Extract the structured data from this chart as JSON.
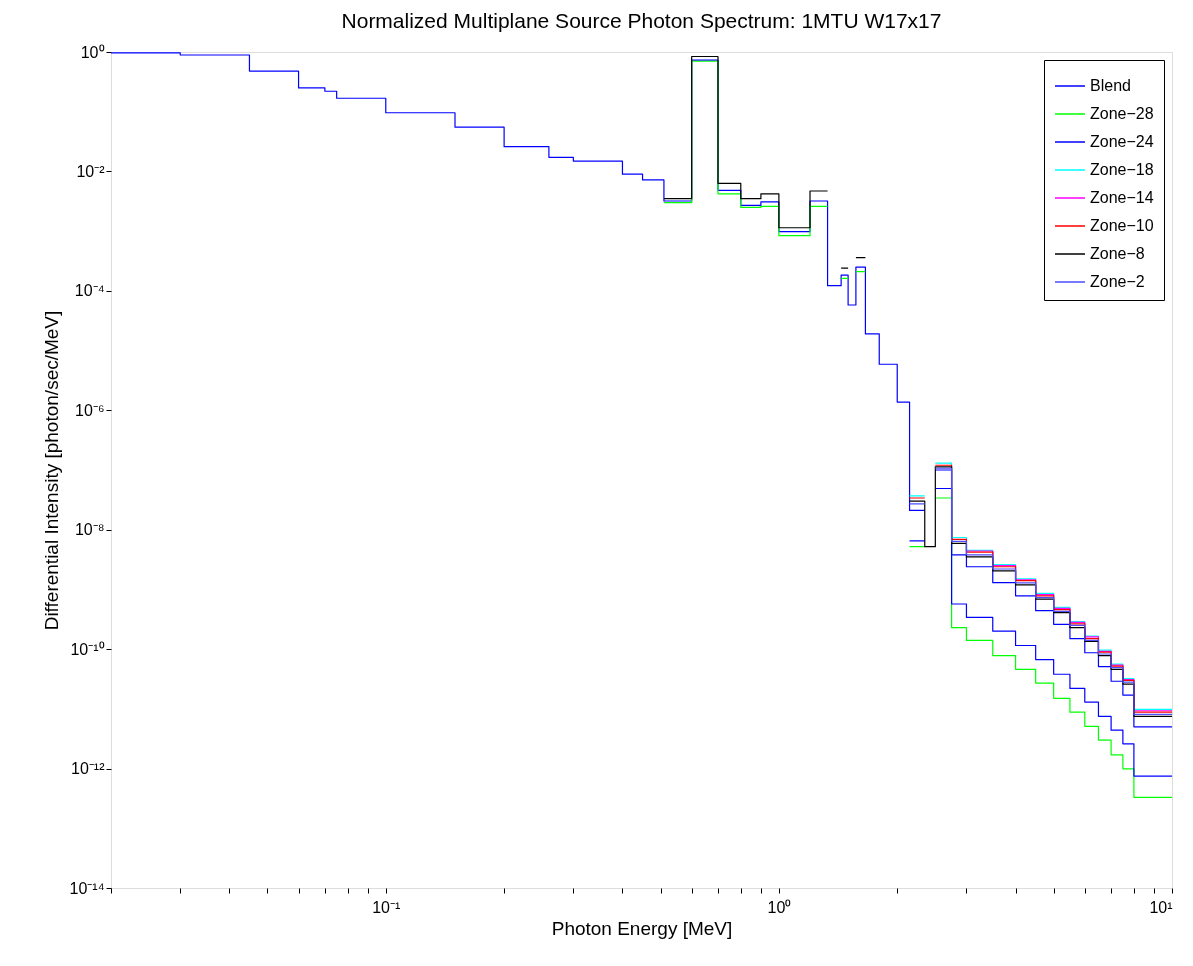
{
  "chart_data": {
    "type": "step",
    "title": "Normalized Multiplane Source Photon Spectrum: 1MTU W17x17",
    "xlabel": "Photon Energy [MeV]",
    "ylabel": "Differential Intensity [photon/sec/MeV]",
    "log": "xy",
    "grid": false,
    "legend": "top right",
    "line_style": "solid",
    "marker": "none",
    "xlim": [
      0.02,
      10
    ],
    "ylim": [
      1e-14,
      1
    ],
    "xticks": [
      {
        "value": 0.02,
        "label": null
      },
      {
        "value": 0.03,
        "label": null
      },
      {
        "value": 0.04,
        "label": null
      },
      {
        "value": 0.05,
        "label": null
      },
      {
        "value": 0.06,
        "label": null
      },
      {
        "value": 0.07,
        "label": null
      },
      {
        "value": 0.08,
        "label": null
      },
      {
        "value": 0.09,
        "label": null
      },
      {
        "value": 0.1,
        "label": "10⁻¹"
      },
      {
        "value": 0.2,
        "label": null
      },
      {
        "value": 0.3,
        "label": null
      },
      {
        "value": 0.4,
        "label": null
      },
      {
        "value": 0.5,
        "label": null
      },
      {
        "value": 0.6,
        "label": null
      },
      {
        "value": 0.7,
        "label": null
      },
      {
        "value": 0.8,
        "label": null
      },
      {
        "value": 0.9,
        "label": null
      },
      {
        "value": 1,
        "label": "10⁰"
      },
      {
        "value": 2,
        "label": null
      },
      {
        "value": 3,
        "label": null
      },
      {
        "value": 4,
        "label": null
      },
      {
        "value": 5,
        "label": null
      },
      {
        "value": 6,
        "label": null
      },
      {
        "value": 7,
        "label": null
      },
      {
        "value": 8,
        "label": null
      },
      {
        "value": 9,
        "label": null
      },
      {
        "value": 10,
        "label": "10¹"
      }
    ],
    "yticks": [
      {
        "value": 1e-14,
        "label": "10⁻¹⁴"
      },
      {
        "value": 1e-12,
        "label": "10⁻¹²"
      },
      {
        "value": 1e-10,
        "label": "10⁻¹⁰"
      },
      {
        "value": 1e-08,
        "label": "10⁻⁸"
      },
      {
        "value": 1e-06,
        "label": "10⁻⁶"
      },
      {
        "value": 0.0001,
        "label": "10⁻⁴"
      },
      {
        "value": 0.01,
        "label": "10⁻²"
      },
      {
        "value": 1,
        "label": "10⁰"
      }
    ],
    "x": [
      0.02,
      0.03,
      0.045,
      0.06,
      0.07,
      0.075,
      0.1,
      0.15,
      0.2,
      0.26,
      0.3,
      0.4,
      0.45,
      0.51,
      0.6,
      0.7,
      0.8,
      0.9,
      1.0,
      1.2,
      1.33,
      1.44,
      1.5,
      1.57,
      1.66,
      1.8,
      2.0,
      2.15,
      2.35,
      2.5,
      2.75,
      3.0,
      3.5,
      4.0,
      4.5,
      5.0,
      5.5,
      6.0,
      6.5,
      7.0,
      7.5,
      8.0,
      10
    ],
    "series": [
      {
        "name": "Blend",
        "color": "#0000ff",
        "values": [
          0.97,
          0.89,
          0.48,
          0.25,
          0.22,
          0.168,
          0.096,
          0.055,
          0.026,
          0.0172,
          0.0149,
          0.009,
          0.0072,
          0.0032,
          0.73,
          0.0048,
          0.0027,
          0.0031,
          0.00098,
          0.0032,
          0.000122,
          0.000184,
          5.8e-05,
          0.00025,
          1.9e-05,
          5.9e-06,
          1.37e-06,
          2.1e-08,
          null,
          1e-07,
          3.8e-09,
          2.4e-09,
          1.3e-09,
          7.8e-10,
          4.4e-10,
          2.6e-10,
          1.5e-10,
          8.7e-11,
          5.1e-11,
          2.9e-11,
          1.7e-11,
          5e-12,
          5e-12
        ]
      },
      {
        "name": "Zone−28",
        "color": "#00ff00",
        "values": [
          null,
          null,
          null,
          null,
          null,
          null,
          null,
          null,
          null,
          null,
          null,
          null,
          null,
          0.003,
          0.7,
          0.0042,
          0.0025,
          0.0026,
          0.00084,
          0.0026,
          null,
          0.000162,
          null,
          0.00021,
          null,
          null,
          null,
          5.2e-09,
          null,
          3.4e-08,
          2.3e-10,
          1.4e-10,
          7.8e-11,
          4.6e-11,
          2.7e-11,
          1.5e-11,
          8.8e-12,
          5.1e-12,
          3e-12,
          1.7e-12,
          9.9e-13,
          3.3e-13,
          3.3e-13
        ]
      },
      {
        "name": "Zone−24",
        "color": "#0000ff",
        "values": [
          null,
          null,
          null,
          null,
          null,
          null,
          null,
          null,
          null,
          null,
          null,
          null,
          null,
          null,
          null,
          null,
          null,
          null,
          null,
          null,
          null,
          null,
          null,
          null,
          null,
          null,
          null,
          6.5e-09,
          null,
          4.9e-08,
          5.7e-10,
          3.4e-10,
          2e-10,
          1.15e-10,
          6.7e-11,
          3.8e-11,
          2.2e-11,
          1.3e-11,
          7.5e-12,
          4.4e-12,
          2.6e-12,
          7.5e-13,
          7.5e-13
        ]
      },
      {
        "name": "Zone−18",
        "color": "#00ffff",
        "values": [
          null,
          null,
          null,
          null,
          null,
          null,
          null,
          null,
          null,
          null,
          null,
          null,
          null,
          null,
          null,
          null,
          null,
          null,
          null,
          null,
          null,
          null,
          null,
          null,
          null,
          null,
          null,
          3.7e-08,
          null,
          1.3e-07,
          7.4e-09,
          4.5e-09,
          2.6e-09,
          1.5e-09,
          8.6e-10,
          5e-10,
          2.9e-10,
          1.65e-10,
          9.6e-11,
          5.6e-11,
          3.2e-11,
          9.8e-12,
          9.8e-12
        ]
      },
      {
        "name": "Zone−14",
        "color": "#ff00ff",
        "values": [
          null,
          null,
          null,
          null,
          null,
          null,
          null,
          null,
          null,
          null,
          null,
          null,
          null,
          null,
          null,
          null,
          null,
          null,
          null,
          null,
          null,
          null,
          null,
          null,
          null,
          null,
          null,
          null,
          null,
          null,
          null,
          4.4e-09,
          2.5e-09,
          1.45e-09,
          8.2e-10,
          4.8e-10,
          2.8e-10,
          1.6e-10,
          9.2e-11,
          5.4e-11,
          3.1e-11,
          9.3e-12,
          9.3e-12
        ]
      },
      {
        "name": "Zone−10",
        "color": "#ff0000",
        "values": [
          null,
          null,
          null,
          null,
          null,
          null,
          null,
          null,
          null,
          null,
          null,
          null,
          null,
          null,
          null,
          null,
          null,
          null,
          null,
          null,
          null,
          null,
          null,
          null,
          null,
          null,
          null,
          3.4e-08,
          null,
          1.2e-07,
          6.9e-09,
          4.2e-09,
          2.4e-09,
          1.4e-09,
          7.8e-10,
          4.6e-10,
          2.65e-10,
          1.5e-10,
          8.9e-11,
          5.2e-11,
          3e-11,
          8.8e-12,
          8.8e-12
        ]
      },
      {
        "name": "Zone−8",
        "color": "#000000",
        "values": [
          null,
          null,
          null,
          null,
          null,
          null,
          null,
          null,
          null,
          null,
          null,
          null,
          null,
          0.0035,
          0.84,
          0.0063,
          0.0035,
          0.0042,
          0.00114,
          0.0047,
          null,
          0.00024,
          null,
          0.00036,
          null,
          null,
          null,
          3e-08,
          5.2e-09,
          1.13e-07,
          5.9e-09,
          3.5e-09,
          2.05e-09,
          1.19e-09,
          6.9e-10,
          4.1e-10,
          2.3e-10,
          1.35e-10,
          7.8e-11,
          4.6e-11,
          2.6e-11,
          7.5e-12,
          7.5e-12
        ]
      },
      {
        "name": "Zone−2",
        "color": "#4d4dff",
        "values": [
          null,
          null,
          null,
          null,
          null,
          null,
          null,
          null,
          null,
          null,
          null,
          null,
          null,
          null,
          null,
          null,
          null,
          null,
          null,
          null,
          null,
          null,
          null,
          null,
          null,
          null,
          null,
          2.7e-08,
          null,
          1.07e-07,
          6.4e-09,
          3.8e-09,
          2.2e-09,
          1.29e-09,
          7.3e-10,
          4.3e-10,
          2.5e-10,
          1.4e-10,
          8.3e-11,
          4.9e-11,
          2.8e-11,
          8.1e-12,
          8.1e-12
        ]
      }
    ]
  }
}
